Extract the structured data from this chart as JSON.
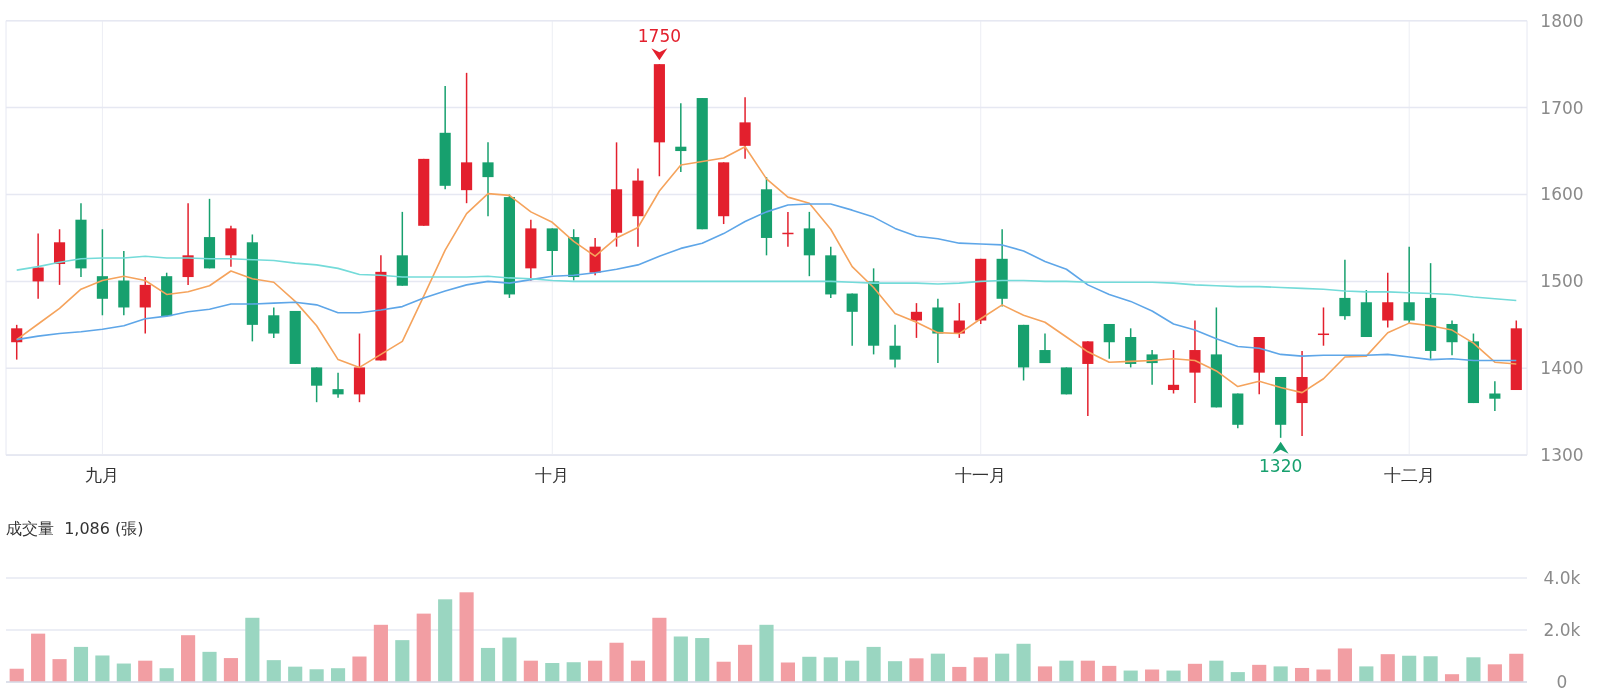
{
  "chart_data": [
    {
      "type": "candlestick",
      "categories": [
        null,
        null,
        null,
        null,
        "九月",
        null,
        null,
        null,
        null,
        null,
        null,
        null,
        null,
        null,
        null,
        null,
        null,
        null,
        null,
        null,
        null,
        null,
        null,
        null,
        null,
        "十月",
        null,
        null,
        null,
        null,
        null,
        null,
        null,
        null,
        null,
        null,
        null,
        null,
        null,
        null,
        null,
        null,
        null,
        null,
        null,
        "十一月",
        null,
        null,
        null,
        null,
        null,
        null,
        null,
        null,
        null,
        null,
        null,
        null,
        null,
        null,
        null,
        null,
        null,
        null,
        null,
        "十二月",
        null,
        null,
        null,
        null,
        null
      ],
      "ohlc": [
        [
          1430,
          1450,
          1410,
          1446
        ],
        [
          1500,
          1555,
          1480,
          1516
        ],
        [
          1520,
          1560,
          1496,
          1545
        ],
        [
          1571,
          1590,
          1505,
          1515
        ],
        [
          1506,
          1560,
          1461,
          1480
        ],
        [
          1501,
          1535,
          1461,
          1470
        ],
        [
          1470,
          1505,
          1440,
          1496
        ],
        [
          1506,
          1510,
          1460,
          1460
        ],
        [
          1505,
          1590,
          1496,
          1530
        ],
        [
          1551,
          1595,
          1515,
          1515
        ],
        [
          1530,
          1564,
          1517,
          1561
        ],
        [
          1545,
          1554,
          1431,
          1450
        ],
        [
          1461,
          1470,
          1435,
          1440
        ],
        [
          1466,
          1466,
          1405,
          1405
        ],
        [
          1401,
          1401,
          1361,
          1380
        ],
        [
          1376,
          1395,
          1366,
          1370
        ],
        [
          1370,
          1440,
          1361,
          1401
        ],
        [
          1409,
          1530,
          1409,
          1511
        ],
        [
          1530,
          1580,
          1495,
          1495
        ],
        [
          1564,
          1641,
          1564,
          1641
        ],
        [
          1671,
          1725,
          1606,
          1610
        ],
        [
          1605,
          1740,
          1590,
          1637
        ],
        [
          1637,
          1660,
          1575,
          1620
        ],
        [
          1597,
          1600,
          1481,
          1485
        ],
        [
          1515,
          1571,
          1501,
          1561
        ],
        [
          1561,
          1561,
          1507,
          1535
        ],
        [
          1551,
          1560,
          1501,
          1505
        ],
        [
          1510,
          1550,
          1507,
          1540
        ],
        [
          1556,
          1660,
          1540,
          1606
        ],
        [
          1575,
          1630,
          1540,
          1616
        ],
        [
          1660,
          1750,
          1621,
          1750
        ],
        [
          1655,
          1705,
          1626,
          1650
        ],
        [
          1711,
          1711,
          1560,
          1560
        ],
        [
          1575,
          1637,
          1566,
          1637
        ],
        [
          1656,
          1712,
          1641,
          1683
        ],
        [
          1606,
          1620,
          1530,
          1550
        ],
        [
          1555,
          1580,
          1540,
          1556
        ],
        [
          1561,
          1580,
          1506,
          1530
        ],
        [
          1530,
          1540,
          1481,
          1485
        ],
        [
          1486,
          1486,
          1426,
          1465
        ],
        [
          1500,
          1515,
          1416,
          1426
        ],
        [
          1426,
          1450,
          1401,
          1410
        ],
        [
          1455,
          1475,
          1435,
          1465
        ],
        [
          1470,
          1480,
          1406,
          1440
        ],
        [
          1440,
          1475,
          1435,
          1455
        ],
        [
          1455,
          1526,
          1451,
          1526
        ],
        [
          1526,
          1560,
          1471,
          1480
        ],
        [
          1450,
          1450,
          1386,
          1401
        ],
        [
          1421,
          1440,
          1406,
          1406
        ],
        [
          1401,
          1401,
          1370,
          1370
        ],
        [
          1405,
          1431,
          1345,
          1431
        ],
        [
          1451,
          1451,
          1411,
          1430
        ],
        [
          1436,
          1446,
          1401,
          1405
        ],
        [
          1416,
          1421,
          1381,
          1406
        ],
        [
          1375,
          1421,
          1371,
          1381
        ],
        [
          1395,
          1455,
          1360,
          1421
        ],
        [
          1416,
          1470,
          1355,
          1355
        ],
        [
          1371,
          1371,
          1331,
          1335
        ],
        [
          1395,
          1436,
          1370,
          1436
        ],
        [
          1390,
          1390,
          1320,
          1335
        ],
        [
          1360,
          1420,
          1322,
          1390
        ],
        [
          1439,
          1470,
          1426,
          1440
        ],
        [
          1481,
          1525,
          1456,
          1460
        ],
        [
          1476,
          1490,
          1436,
          1436
        ],
        [
          1455,
          1510,
          1447,
          1476
        ],
        [
          1476,
          1540,
          1451,
          1455
        ],
        [
          1481,
          1521,
          1411,
          1420
        ],
        [
          1451,
          1455,
          1415,
          1430
        ],
        [
          1431,
          1440,
          1360,
          1360
        ],
        [
          1371,
          1385,
          1351,
          1365
        ],
        [
          1375,
          1455,
          1375,
          1446
        ]
      ],
      "series": [
        {
          "type": "line",
          "color": "#f5a35c",
          "values": [
            1433,
            1451,
            1469,
            1491,
            1501,
            1506,
            1501,
            1485,
            1488,
            1495,
            1512,
            1503,
            1499,
            1477,
            1449,
            1410,
            1401,
            1416,
            1431,
            1483,
            1536,
            1578,
            1601,
            1599,
            1580,
            1568,
            1546,
            1529,
            1550,
            1562,
            1604,
            1634,
            1638,
            1642,
            1655,
            1618,
            1597,
            1590,
            1560,
            1517,
            1493,
            1463,
            1453,
            1441,
            1440,
            1457,
            1473,
            1461,
            1453,
            1436,
            1419,
            1407,
            1408,
            1409,
            1411,
            1409,
            1397,
            1379,
            1385,
            1378,
            1372,
            1388,
            1413,
            1414,
            1441,
            1452,
            1449,
            1444,
            1429,
            1407,
            1405
          ]
        },
        {
          "type": "line",
          "color": "#5ea6e8",
          "values": [
            1433,
            1437,
            1440,
            1442,
            1445,
            1449,
            1457,
            1460,
            1465,
            1468,
            1474,
            1474,
            1475,
            1476,
            1473,
            1464,
            1464,
            1467,
            1471,
            1481,
            1489,
            1496,
            1500,
            1498,
            1502,
            1506,
            1507,
            1510,
            1514,
            1519,
            1529,
            1538,
            1544,
            1555,
            1569,
            1580,
            1588,
            1589,
            1589,
            1582,
            1574,
            1561,
            1552,
            1549,
            1544,
            1543,
            1542,
            1535,
            1523,
            1514,
            1496,
            1485,
            1477,
            1466,
            1451,
            1444,
            1434,
            1425,
            1423,
            1416,
            1414,
            1415,
            1415,
            1415,
            1416,
            1413,
            1410,
            1411,
            1409,
            1409,
            1409
          ]
        },
        {
          "type": "line",
          "color": "#74dbd9",
          "values": [
            1513,
            1517,
            1522,
            1526,
            1527,
            1527,
            1529,
            1527,
            1527,
            1526,
            1526,
            1525,
            1524,
            1521,
            1519,
            1515,
            1508,
            1507,
            1505,
            1505,
            1505,
            1505,
            1506,
            1504,
            1503,
            1501,
            1500,
            1500,
            1500,
            1500,
            1500,
            1500,
            1500,
            1500,
            1500,
            1500,
            1500,
            1500,
            1500,
            1499,
            1498,
            1498,
            1498,
            1497,
            1498,
            1500,
            1501,
            1501,
            1500,
            1500,
            1499,
            1499,
            1499,
            1499,
            1498,
            1496,
            1495,
            1494,
            1494,
            1493,
            1492,
            1491,
            1489,
            1488,
            1488,
            1487,
            1486,
            1485,
            1482,
            1480,
            1478
          ]
        }
      ],
      "ylim": [
        1300,
        1800
      ],
      "yticks": [
        1300,
        1400,
        1500,
        1600,
        1700,
        1800
      ],
      "grid": true,
      "annotations": [
        {
          "text": "1750",
          "y": 1750
        },
        {
          "text": "1320",
          "y": 1320
        }
      ]
    },
    {
      "type": "bar",
      "title": "成交量  1,086 (張)",
      "categories": [
        null,
        null,
        null,
        null,
        null,
        null,
        null,
        null,
        null,
        null,
        null,
        null,
        null,
        null,
        null,
        null,
        null,
        null,
        null,
        null,
        null,
        null,
        null,
        null,
        null,
        null,
        null,
        null,
        null,
        null,
        null,
        null,
        null,
        null,
        null,
        null,
        null,
        null,
        null,
        null,
        null,
        null,
        null,
        null,
        null,
        null,
        null,
        null,
        null,
        null,
        null,
        null,
        null,
        null,
        null,
        null,
        null,
        null,
        null,
        null,
        null,
        null,
        null,
        null,
        null,
        null,
        null,
        null,
        null,
        null,
        null
      ],
      "values": [
        510,
        1860,
        880,
        1350,
        1020,
        710,
        820,
        530,
        1800,
        1160,
        920,
        2470,
        840,
        590,
        490,
        530,
        980,
        2200,
        1610,
        2630,
        3180,
        3450,
        1310,
        1710,
        820,
        730,
        760,
        820,
        1510,
        820,
        2470,
        1750,
        1690,
        780,
        1430,
        2200,
        750,
        970,
        950,
        820,
        1350,
        800,
        910,
        1090,
        580,
        950,
        1090,
        1470,
        600,
        820,
        820,
        620,
        440,
        480,
        440,
        700,
        820,
        380,
        660,
        600,
        540,
        480,
        1290,
        600,
        1070,
        1010,
        990,
        300,
        950,
        680,
        1086
      ],
      "colors": [
        "#f29ea3",
        "#f29ea3",
        "#f29ea3",
        "#9ad6c1",
        "#9ad6c1",
        "#9ad6c1",
        "#f29ea3",
        "#9ad6c1",
        "#f29ea3",
        "#9ad6c1",
        "#f29ea3",
        "#9ad6c1",
        "#9ad6c1",
        "#9ad6c1",
        "#9ad6c1",
        "#9ad6c1",
        "#f29ea3",
        "#f29ea3",
        "#9ad6c1",
        "#f29ea3",
        "#9ad6c1",
        "#f29ea3",
        "#9ad6c1",
        "#9ad6c1",
        "#f29ea3",
        "#9ad6c1",
        "#9ad6c1",
        "#f29ea3",
        "#f29ea3",
        "#f29ea3",
        "#f29ea3",
        "#9ad6c1",
        "#9ad6c1",
        "#f29ea3",
        "#f29ea3",
        "#9ad6c1",
        "#f29ea3",
        "#9ad6c1",
        "#9ad6c1",
        "#9ad6c1",
        "#9ad6c1",
        "#9ad6c1",
        "#f29ea3",
        "#9ad6c1",
        "#f29ea3",
        "#f29ea3",
        "#9ad6c1",
        "#9ad6c1",
        "#f29ea3",
        "#9ad6c1",
        "#f29ea3",
        "#f29ea3",
        "#9ad6c1",
        "#f29ea3",
        "#9ad6c1",
        "#f29ea3",
        "#9ad6c1",
        "#9ad6c1",
        "#f29ea3",
        "#9ad6c1",
        "#f29ea3",
        "#f29ea3",
        "#f29ea3",
        "#9ad6c1",
        "#f29ea3",
        "#9ad6c1",
        "#9ad6c1",
        "#f29ea3",
        "#9ad6c1",
        "#f29ea3",
        "#f29ea3"
      ],
      "ylim": [
        0,
        4000
      ],
      "yticks": [
        0,
        {
          "value": 2000,
          "label": "2.0k"
        },
        {
          "value": 4000,
          "label": "4.0k"
        }
      ],
      "grid": "y"
    }
  ]
}
